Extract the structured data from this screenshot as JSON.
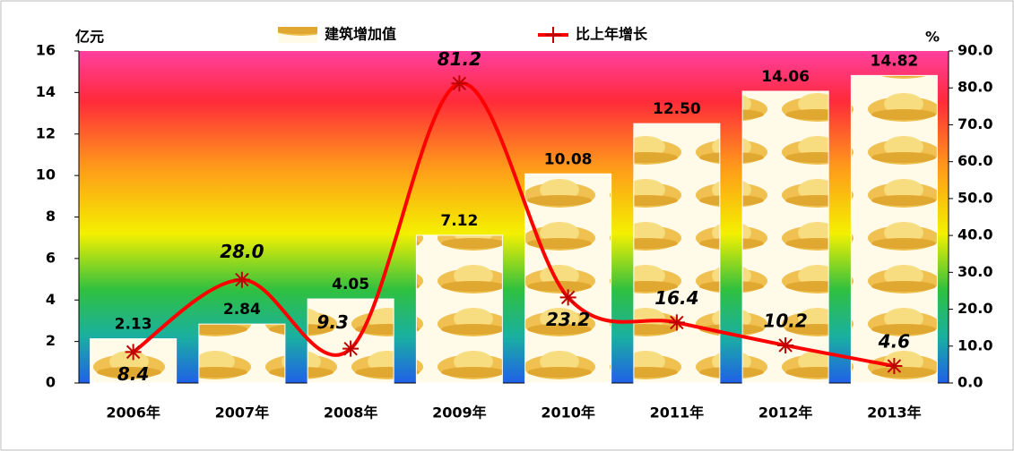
{
  "chart_data": {
    "type": "bar-line",
    "categories": [
      "2006年",
      "2007年",
      "2008年",
      "2009年",
      "2010年",
      "2011年",
      "2012年",
      "2013年"
    ],
    "y_label": "亿元",
    "y2_label": "%",
    "ylim": [
      0,
      16
    ],
    "yticks": [
      0,
      2,
      4,
      6,
      8,
      10,
      12,
      14,
      16
    ],
    "y2lim": [
      0,
      90
    ],
    "y2ticks": [
      {
        "value": 0,
        "label": "0.0"
      },
      {
        "value": 10,
        "label": "10.0"
      },
      {
        "value": 20,
        "label": "20.0"
      },
      {
        "value": 30,
        "label": "30.0"
      },
      {
        "value": 40,
        "label": "40.0"
      },
      {
        "value": 50,
        "label": "50.0"
      },
      {
        "value": 60,
        "label": "60.0"
      },
      {
        "value": 70,
        "label": "70.0"
      },
      {
        "value": 80,
        "label": "80.0"
      },
      {
        "value": 90,
        "label": "90.0"
      }
    ],
    "series": [
      {
        "name": "建筑增加值",
        "type": "bar",
        "color": "#f2c55a",
        "values": [
          2.13,
          2.84,
          4.05,
          7.12,
          10.08,
          12.5,
          14.06,
          14.82
        ],
        "value_labels": [
          "2.13",
          "2.84",
          "4.05",
          "7.12",
          "10.08",
          "12.50",
          "14.06",
          "14.82"
        ]
      },
      {
        "name": "比上年增长",
        "type": "line",
        "axis": "y2",
        "color": "#ff0000",
        "values": [
          8.4,
          28.0,
          9.3,
          81.2,
          23.2,
          16.4,
          10.2,
          4.6
        ],
        "value_labels": [
          "8.4",
          "28.0",
          "9.3",
          "81.2",
          "23.2",
          "16.4",
          "10.2",
          "4.6"
        ]
      }
    ]
  }
}
